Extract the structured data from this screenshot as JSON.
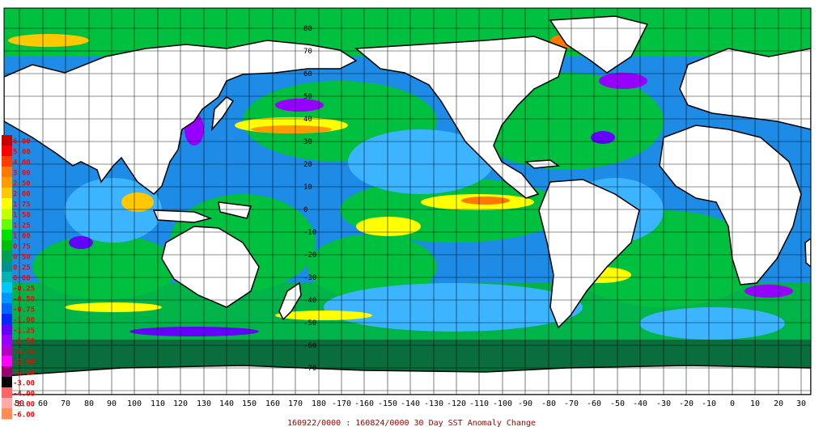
{
  "caption": "160922/0000 : 160824/0000 30 Day SST Anomaly Change",
  "lon_labels": [
    "50",
    "60",
    "70",
    "80",
    "90",
    "100",
    "110",
    "120",
    "130",
    "140",
    "150",
    "160",
    "170",
    "180",
    "-170",
    "-160",
    "-150",
    "-140",
    "-130",
    "-120",
    "-110",
    "-100",
    "-90",
    "-80",
    "-70",
    "-60",
    "-50",
    "-40",
    "-30",
    "-20",
    "-10",
    "0",
    "10",
    "20",
    "30"
  ],
  "lat_labels": [
    "80",
    "70",
    "60",
    "50",
    "40",
    "30",
    "20",
    "10",
    "0",
    "-10",
    "-20",
    "-30",
    "-40",
    "-50",
    "-60",
    "-70"
  ],
  "legend": {
    "labels": [
      "6.00",
      "5.00",
      "4.00",
      "3.00",
      "2.50",
      "2.00",
      "1.75",
      "1.50",
      "1.25",
      "1.00",
      "0.75",
      "0.50",
      "0.25",
      "0.00",
      "-0.25",
      "-0.50",
      "-0.75",
      "-1.00",
      "-1.25",
      "-1.50",
      "-1.75",
      "-2.00",
      "-2.50",
      "-3.00",
      "-4.00",
      "-5.00",
      "-6.00"
    ],
    "colors": [
      "#c80000",
      "#ff0000",
      "#ff3c00",
      "#ff7800",
      "#ff9a00",
      "#ffc800",
      "#ffff00",
      "#c8ff00",
      "#64ff00",
      "#00e000",
      "#00c000",
      "#00a050",
      "#009090",
      "#00b4b4",
      "#00c8ff",
      "#0096ff",
      "#0064ff",
      "#0028ff",
      "#6400ff",
      "#9600ff",
      "#b400c8",
      "#ff00ff",
      "#9a0070",
      "#000000",
      "#ff6464",
      "#ffaaaa",
      "#ff8c50"
    ]
  },
  "colors": {
    "land": "#ffffff",
    "coast": "#000000",
    "grid": "#000000",
    "ice": "#0a6e3c",
    "ocean_base": "#1e8ce6"
  }
}
